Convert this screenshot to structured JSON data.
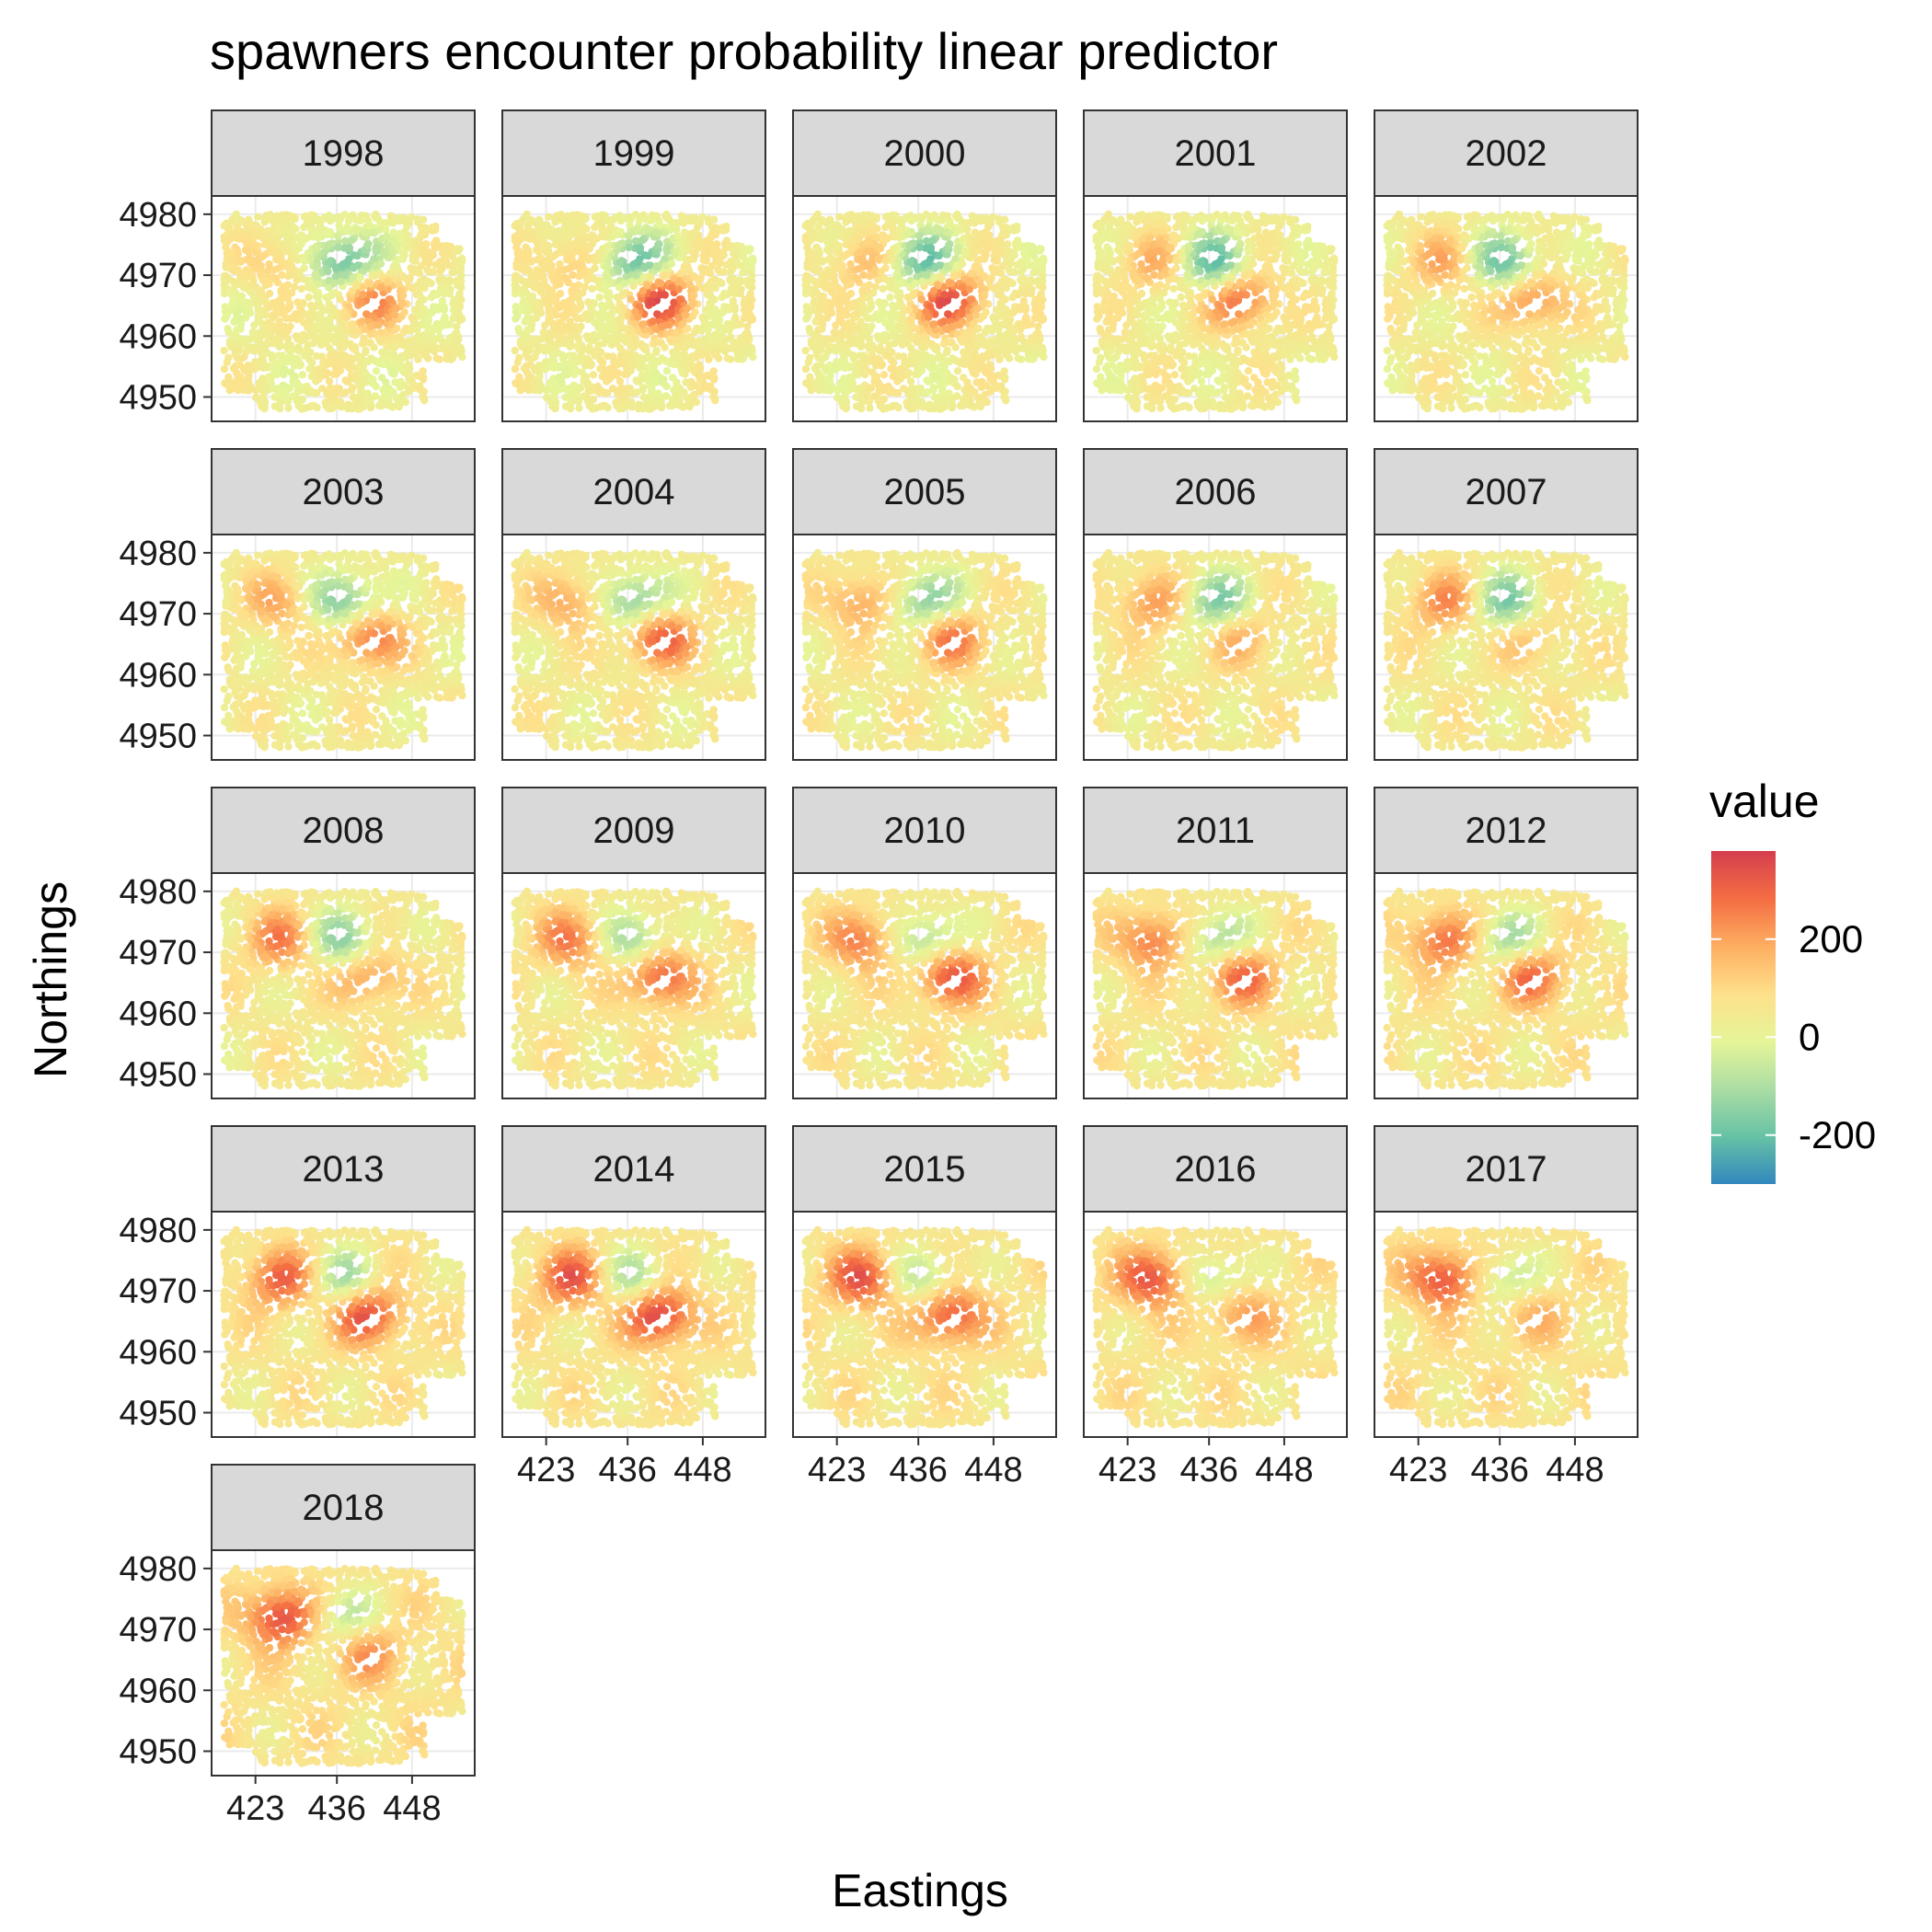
{
  "chart_data": {
    "type": "heatmap",
    "title": "spawners encounter probability linear predictor",
    "xlabel": "Eastings",
    "ylabel": "Northings",
    "facet_variable": "year",
    "panels": [
      "1998",
      "1999",
      "2000",
      "2001",
      "2002",
      "2003",
      "2004",
      "2005",
      "2006",
      "2007",
      "2008",
      "2009",
      "2010",
      "2011",
      "2012",
      "2013",
      "2014",
      "2015",
      "2016",
      "2017",
      "2018"
    ],
    "facet_columns": 5,
    "x_ticks": [
      "423",
      "436",
      "448"
    ],
    "y_ticks": [
      "4980",
      "4970",
      "4960",
      "4950"
    ],
    "xlim": [
      416,
      458
    ],
    "ylim": [
      4946,
      4983
    ],
    "legend": {
      "title": "value",
      "position": "right",
      "ticks": [
        "200",
        "0",
        "-200"
      ],
      "range": [
        -300,
        380
      ],
      "palette": "Spectral",
      "colors": [
        "#3288bd",
        "#66c2a5",
        "#abdda4",
        "#e6f598",
        "#fee08b",
        "#fdae61",
        "#f46d43",
        "#d53e4f"
      ]
    },
    "grid": true,
    "hotspots": [
      {
        "name": "central-east high",
        "x": 441,
        "y": 4966,
        "peak_value": 300
      },
      {
        "name": "north-west high",
        "x": 427,
        "y": 4972,
        "peak_value": 200
      },
      {
        "name": "central ridge low",
        "x": 437,
        "y": 4972,
        "peak_value": -220
      }
    ]
  }
}
